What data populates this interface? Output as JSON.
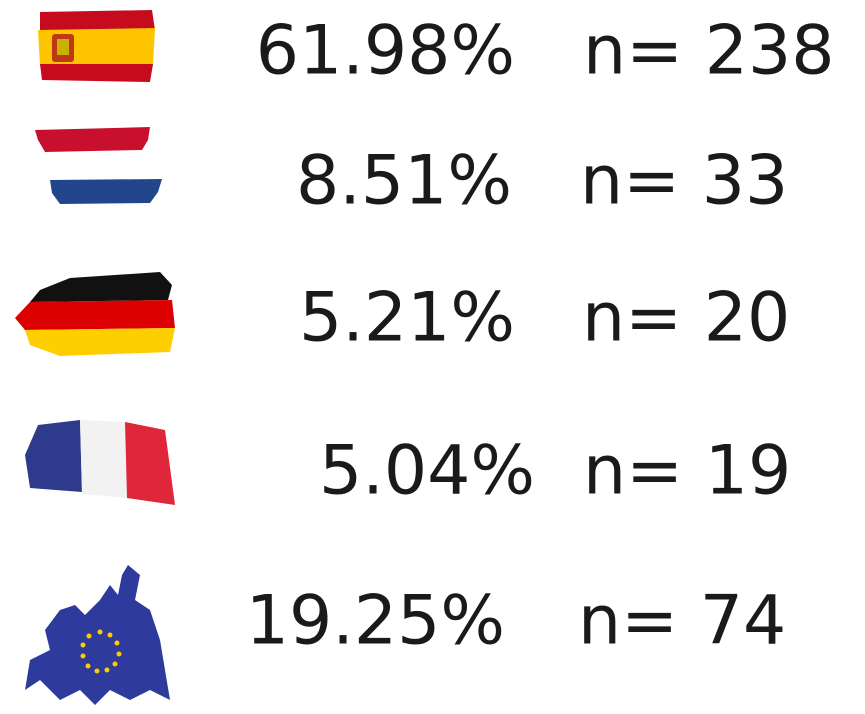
{
  "rows": [
    {
      "percent": "61.98%",
      "n": "n= 238"
    },
    {
      "percent": "8.51%",
      "n": "n= 33"
    },
    {
      "percent": "5.21%",
      "n": "n= 20"
    },
    {
      "percent": "5.04%",
      "n": "n= 19"
    },
    {
      "percent": "19.25%",
      "n": "n= 74"
    }
  ]
}
